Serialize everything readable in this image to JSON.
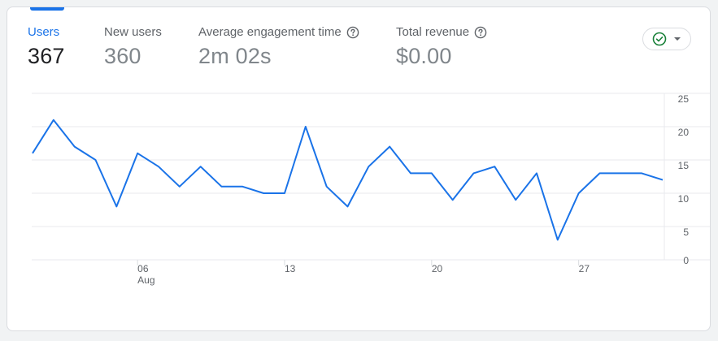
{
  "metrics": [
    {
      "label": "Users",
      "value": "367",
      "help": false
    },
    {
      "label": "New users",
      "value": "360",
      "help": false
    },
    {
      "label": "Average engagement time",
      "value": "2m 02s",
      "help": true
    },
    {
      "label": "Total revenue",
      "value": "$0.00",
      "help": true
    }
  ],
  "compare_button": {
    "icon": "check-circle-icon",
    "dropdown_icon": "caret-down-icon",
    "accent": "#188038"
  },
  "colors": {
    "accent": "#1a73e8",
    "line": "#1a73e8"
  },
  "chart_data": {
    "type": "line",
    "title": "",
    "xlabel": "",
    "ylabel": "",
    "ylim": [
      0,
      25
    ],
    "y_ticks": [
      "25",
      "20",
      "15",
      "10",
      "5",
      "0"
    ],
    "x_tick_labels": [
      {
        "day": 6,
        "label": "06",
        "sub": "Aug"
      },
      {
        "day": 13,
        "label": "13",
        "sub": ""
      },
      {
        "day": 20,
        "label": "20",
        "sub": ""
      },
      {
        "day": 27,
        "label": "27",
        "sub": ""
      }
    ],
    "grid": true,
    "series": [
      {
        "x": [
          1,
          2,
          3,
          4,
          5,
          6,
          7,
          8,
          9,
          10,
          11,
          12,
          13,
          14,
          15,
          16,
          17,
          18,
          19,
          20,
          21,
          22,
          23,
          24,
          25,
          26,
          27,
          28,
          29,
          30,
          31
        ],
        "values": [
          16,
          21,
          17,
          15,
          8,
          16,
          14,
          11,
          14,
          11,
          11,
          10,
          10,
          20,
          11,
          8,
          14,
          17,
          13,
          13,
          9,
          13,
          14,
          9,
          13,
          3,
          10,
          13,
          13,
          13,
          12
        ]
      }
    ]
  }
}
